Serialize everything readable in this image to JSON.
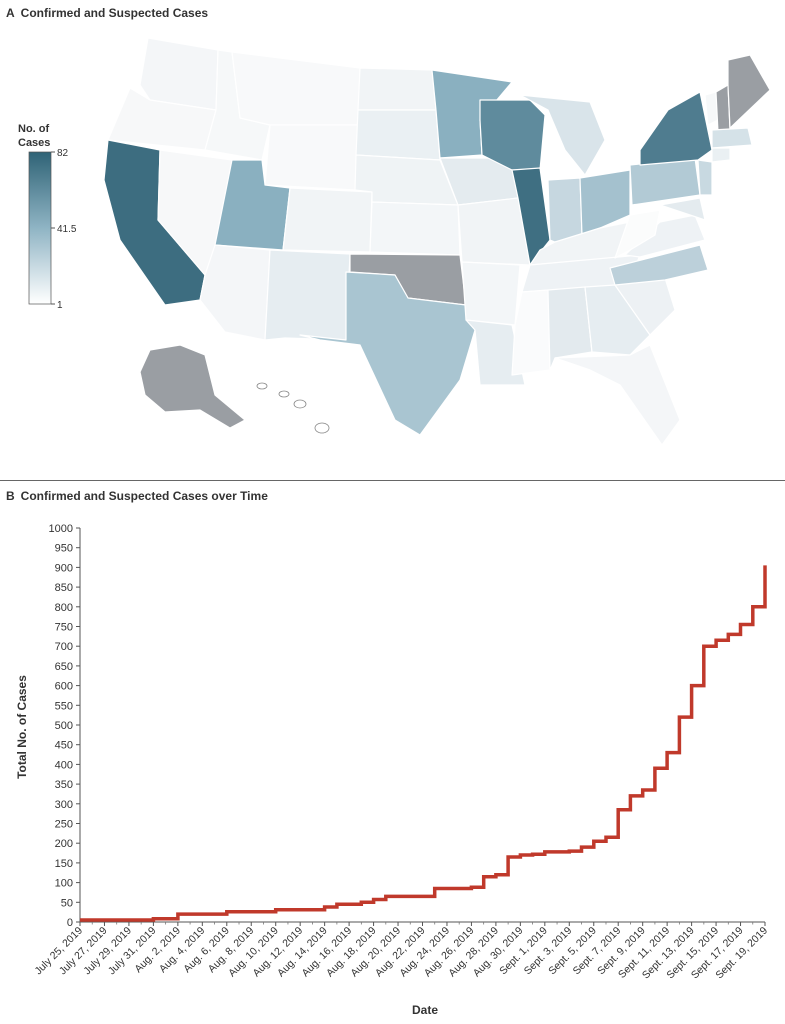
{
  "panel_a": {
    "letter": "A",
    "title": "Confirmed and Suspected Cases",
    "legend": {
      "title_line1": "No. of",
      "title_line2": "Cases",
      "max_label": "82",
      "mid_label": "41.5",
      "min_label": "1"
    },
    "colors": {
      "high": "#2f6376",
      "mid": "#8fb4c4",
      "low": "#ffffff",
      "no_data": "#9a9ea3",
      "border": "#ffffff"
    }
  },
  "panel_b": {
    "letter": "B",
    "title": "Confirmed and Suspected Cases over Time"
  },
  "chart_data": {
    "type": "line",
    "title": "Confirmed and Suspected Cases over Time",
    "xlabel": "Date",
    "ylabel": "Total No. of Cases",
    "ylim": [
      0,
      1000
    ],
    "yticks": [
      0,
      50,
      100,
      150,
      200,
      250,
      300,
      350,
      400,
      450,
      500,
      550,
      600,
      650,
      700,
      750,
      800,
      850,
      900,
      950,
      1000
    ],
    "xlim": [
      "July 25, 2019",
      "Sept. 19, 2019"
    ],
    "x_tick_labels": [
      "July 25, 2019",
      "July 27, 2019",
      "July 29, 2019",
      "July 31, 2019",
      "Aug. 2, 2019",
      "Aug. 4, 2019",
      "Aug. 6, 2019",
      "Aug. 8, 2019",
      "Aug. 10, 2019",
      "Aug. 12, 2019",
      "Aug. 14, 2019",
      "Aug. 16, 2019",
      "Aug. 18, 2019",
      "Aug. 20, 2019",
      "Aug. 22, 2019",
      "Aug. 24, 2019",
      "Aug. 26, 2019",
      "Aug. 28, 2019",
      "Aug. 30, 2019",
      "Sept. 1, 2019",
      "Sept. 3, 2019",
      "Sept. 5, 2019",
      "Sept. 7, 2019",
      "Sept. 9, 2019",
      "Sept. 11, 2019",
      "Sept. 13, 2019",
      "Sept. 15, 2019",
      "Sept. 17, 2019",
      "Sept. 19, 2019"
    ],
    "grid": false,
    "line_color": "#c0392b",
    "series": [
      {
        "x": [
          "2019-07-25",
          "2019-07-31",
          "2019-08-02",
          "2019-08-06",
          "2019-08-10",
          "2019-08-14",
          "2019-08-15",
          "2019-08-17",
          "2019-08-18",
          "2019-08-19",
          "2019-08-22",
          "2019-08-23",
          "2019-08-26",
          "2019-08-27",
          "2019-08-28",
          "2019-08-29",
          "2019-08-30",
          "2019-08-31",
          "2019-09-01",
          "2019-09-02",
          "2019-09-03",
          "2019-09-04",
          "2019-09-05",
          "2019-09-06",
          "2019-09-07",
          "2019-09-08",
          "2019-09-09",
          "2019-09-10",
          "2019-09-11",
          "2019-09-12",
          "2019-09-13",
          "2019-09-14",
          "2019-09-15",
          "2019-09-16",
          "2019-09-17",
          "2019-09-18",
          "2019-09-19"
        ],
        "y": [
          5,
          8,
          20,
          26,
          31,
          38,
          45,
          50,
          57,
          65,
          65,
          85,
          88,
          115,
          120,
          165,
          170,
          172,
          178,
          178,
          180,
          190,
          205,
          215,
          285,
          320,
          335,
          390,
          430,
          520,
          600,
          700,
          715,
          730,
          755,
          800,
          905
        ]
      }
    ]
  }
}
